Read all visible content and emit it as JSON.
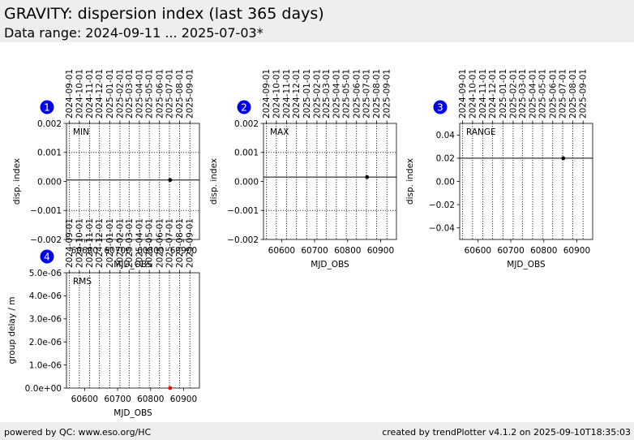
{
  "header": {
    "title": "GRAVITY: dispersion index (last 365 days)",
    "subtitle": "Data range: 2024-09-11 ... 2025-07-03*"
  },
  "footer": {
    "left": "powered by QC: www.eso.org/HC",
    "right": "created by trendPlotter v4.1.2 on 2025-09-10T18:35:03"
  },
  "chart_data": [
    {
      "type": "scatter",
      "badge": "1",
      "label": "MIN",
      "xlabel": "MJD_OBS",
      "ylabel": "disp. index",
      "xlim": [
        60545,
        60948
      ],
      "ylim": [
        -0.002,
        0.002
      ],
      "yticks": [
        -0.002,
        -0.001,
        0.0,
        0.001,
        0.002
      ],
      "ytick_labels": [
        "−0.002",
        "−0.001",
        "0.000",
        "0.001",
        "0.002"
      ],
      "xticks": [
        60600,
        60700,
        60800,
        60900
      ],
      "date_ticks": [
        "2024-09-01",
        "2024-10-01",
        "2024-11-01",
        "2024-12-01",
        "2025-01-01",
        "2025-02-01",
        "2025-03-01",
        "2025-04-01",
        "2025-05-01",
        "2025-06-01",
        "2025-07-01",
        "2025-08-01",
        "2025-09-01"
      ],
      "date_ticks_mjd": [
        60554,
        60584,
        60615,
        60645,
        60676,
        60707,
        60735,
        60766,
        60796,
        60827,
        60857,
        60888,
        60919
      ],
      "hgrid": [
        -0.001,
        0.001
      ],
      "reference_line": 5e-05,
      "points": [
        {
          "x": 60859,
          "y": 5e-05
        }
      ],
      "point_color": "#000000"
    },
    {
      "type": "scatter",
      "badge": "2",
      "label": "MAX",
      "xlabel": "MJD_OBS",
      "ylabel": "disp. index",
      "xlim": [
        60545,
        60948
      ],
      "ylim": [
        -0.002,
        0.002
      ],
      "yticks": [
        -0.002,
        -0.001,
        0.0,
        0.001,
        0.002
      ],
      "ytick_labels": [
        "−0.002",
        "−0.001",
        "0.000",
        "0.001",
        "0.002"
      ],
      "xticks": [
        60600,
        60700,
        60800,
        60900
      ],
      "date_ticks": [
        "2024-09-01",
        "2024-10-01",
        "2024-11-01",
        "2024-12-01",
        "2025-01-01",
        "2025-02-01",
        "2025-03-01",
        "2025-04-01",
        "2025-05-01",
        "2025-06-01",
        "2025-07-01",
        "2025-08-01",
        "2025-09-01"
      ],
      "date_ticks_mjd": [
        60554,
        60584,
        60615,
        60645,
        60676,
        60707,
        60735,
        60766,
        60796,
        60827,
        60857,
        60888,
        60919
      ],
      "hgrid": [
        -0.001,
        0.001
      ],
      "reference_line": 0.00015,
      "points": [
        {
          "x": 60859,
          "y": 0.00015
        }
      ],
      "point_color": "#000000"
    },
    {
      "type": "scatter",
      "badge": "3",
      "label": "RANGE",
      "xlabel": "MJD_OBS",
      "ylabel": "disp. index",
      "xlim": [
        60545,
        60948
      ],
      "ylim": [
        -0.05,
        0.05
      ],
      "yticks": [
        -0.04,
        -0.02,
        0.0,
        0.02,
        0.04
      ],
      "ytick_labels": [
        "−0.04",
        "−0.02",
        "0.00",
        "0.02",
        "0.04"
      ],
      "xticks": [
        60600,
        60700,
        60800,
        60900
      ],
      "date_ticks": [
        "2024-09-01",
        "2024-10-01",
        "2024-11-01",
        "2024-12-01",
        "2025-01-01",
        "2025-02-01",
        "2025-03-01",
        "2025-04-01",
        "2025-05-01",
        "2025-06-01",
        "2025-07-01",
        "2025-08-01",
        "2025-09-01"
      ],
      "date_ticks_mjd": [
        60554,
        60584,
        60615,
        60645,
        60676,
        60707,
        60735,
        60766,
        60796,
        60827,
        60857,
        60888,
        60919
      ],
      "hgrid": [],
      "reference_line": 0.02,
      "points": [
        {
          "x": 60859,
          "y": 0.02
        }
      ],
      "point_color": "#000000"
    },
    {
      "type": "scatter",
      "badge": "4",
      "label": "RMS",
      "xlabel": "MJD_OBS",
      "ylabel": "group delay / m",
      "xlim": [
        60545,
        60948
      ],
      "ylim": [
        0,
        5e-06
      ],
      "yticks": [
        0,
        1e-06,
        2e-06,
        3e-06,
        4e-06,
        5e-06
      ],
      "ytick_labels": [
        "0.0e+00",
        "1.0e-06",
        "2.0e-06",
        "3.0e-06",
        "4.0e-06",
        "5.0e-06"
      ],
      "xticks": [
        60600,
        60700,
        60800,
        60900
      ],
      "date_ticks": [
        "2024-09-01",
        "2024-10-01",
        "2024-11-01",
        "2024-12-01",
        "2025-01-01",
        "2025-02-01",
        "2025-03-01",
        "2025-04-01",
        "2025-05-01",
        "2025-06-01",
        "2025-07-01",
        "2025-08-01",
        "2025-09-01"
      ],
      "date_ticks_mjd": [
        60554,
        60584,
        60615,
        60645,
        60676,
        60707,
        60735,
        60766,
        60796,
        60827,
        60857,
        60888,
        60919
      ],
      "hgrid": [],
      "reference_line": null,
      "points": [
        {
          "x": 60859,
          "y": 0
        }
      ],
      "point_color": "#ff0000"
    }
  ]
}
